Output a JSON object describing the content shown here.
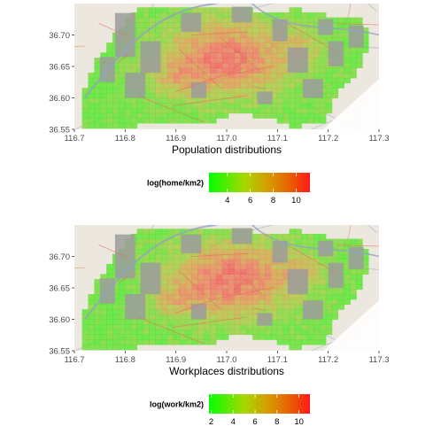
{
  "chart_data": [
    {
      "type": "heatmap",
      "xlabel": "Population distributions",
      "ylabel": "",
      "xlim": [
        116.7,
        117.3
      ],
      "ylim": [
        36.55,
        36.75
      ],
      "x_ticks": [
        "116.7",
        "116.8",
        "116.9",
        "117.0",
        "117.1",
        "117.2",
        "117.3"
      ],
      "y_ticks": [
        "36.55",
        "36.60",
        "36.65",
        "36.70"
      ],
      "legend": {
        "title": "log(home/km2)",
        "placement": "bottom",
        "range": [
          2.4,
          11.2
        ],
        "ticks": [
          "4",
          "6",
          "8",
          "10"
        ],
        "colors": [
          "#00ff00",
          "#ff0000"
        ]
      }
    },
    {
      "type": "heatmap",
      "xlabel": "Workplaces distributions",
      "ylabel": "",
      "xlim": [
        116.7,
        117.3
      ],
      "ylim": [
        36.55,
        36.75
      ],
      "x_ticks": [
        "116.7",
        "116.8",
        "116.9",
        "117.0",
        "117.1",
        "117.2",
        "117.3"
      ],
      "y_ticks": [
        "36.55",
        "36.60",
        "36.65",
        "36.70"
      ],
      "legend": {
        "title": "log(work/km2)",
        "placement": "bottom",
        "range": [
          1.8,
          11.0
        ],
        "ticks": [
          "2",
          "4",
          "6",
          "8",
          "10"
        ],
        "colors": [
          "#00ff00",
          "#ff0000"
        ]
      }
    }
  ]
}
